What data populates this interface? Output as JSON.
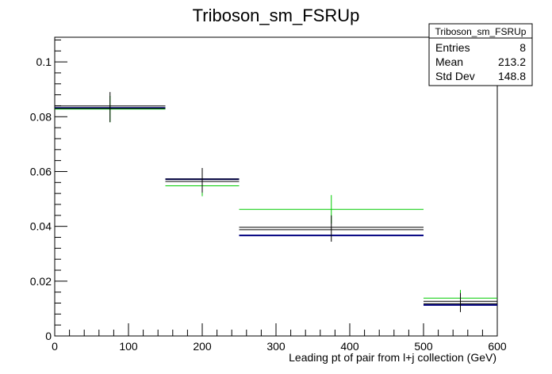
{
  "chart_data": {
    "type": "errorbar-histogram",
    "title": "Triboson_sm_FSRUp",
    "xlabel": "Leading pt of pair from l+j collection (GeV)",
    "ylabel": "",
    "xlim": [
      0,
      600
    ],
    "ylim": [
      0,
      0.109
    ],
    "x_ticks": [
      0,
      100,
      200,
      300,
      400,
      500,
      600
    ],
    "x_tick_labels": [
      "0",
      "100",
      "200",
      "300",
      "400",
      "500",
      "600"
    ],
    "y_ticks": [
      0,
      0.02,
      0.04,
      0.06,
      0.08,
      0.1
    ],
    "y_tick_labels": [
      "0",
      "0.02",
      "0.04",
      "0.06",
      "0.08",
      "0.1"
    ],
    "bins": [
      [
        0,
        150
      ],
      [
        150,
        250
      ],
      [
        250,
        500
      ],
      [
        500,
        600
      ]
    ],
    "series": [
      {
        "color": "#000000",
        "values": [
          0.0835,
          0.0568,
          0.0392,
          0.0122
        ],
        "errors": [
          0.0055,
          0.0045,
          0.0048,
          0.0035
        ],
        "error_style": "box-and-line"
      },
      {
        "color": "#000080",
        "values": [
          0.0832,
          0.0572,
          0.0367,
          0.0113
        ],
        "errors": [
          0,
          0,
          0,
          0
        ]
      },
      {
        "color": "#00cc00",
        "values": [
          0.0828,
          0.0548,
          0.0462,
          0.0138
        ],
        "errors": [
          0.0048,
          0.0038,
          0.0052,
          0.003
        ]
      }
    ],
    "stats_box": {
      "title": "Triboson_sm_FSRUp",
      "rows": [
        {
          "label": "Entries",
          "value": "8"
        },
        {
          "label": "Mean",
          "value": "213.2"
        },
        {
          "label": "Std Dev",
          "value": "148.8"
        }
      ]
    }
  }
}
